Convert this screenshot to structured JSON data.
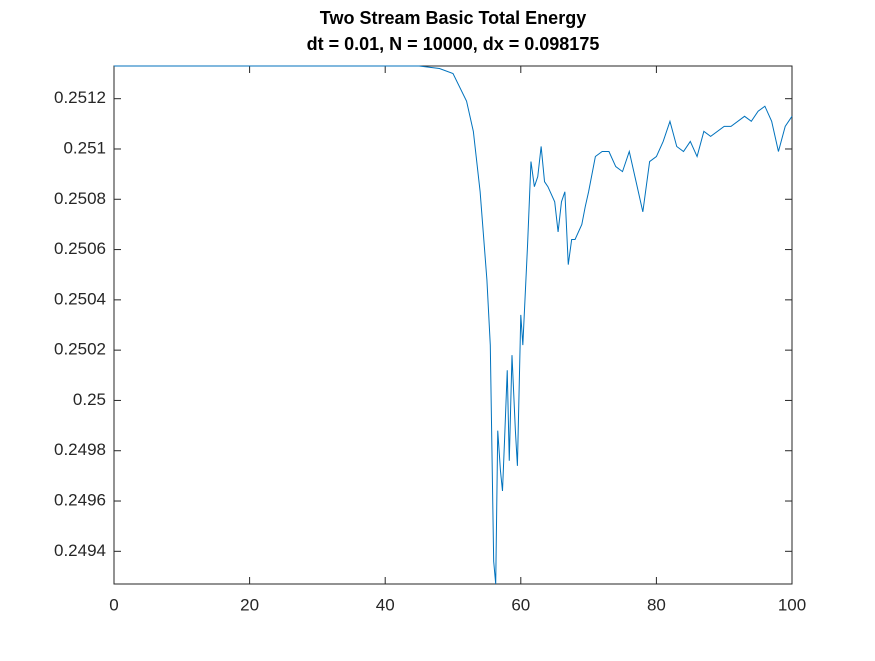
{
  "chart_data": {
    "type": "line",
    "title": "Two Stream Basic Total Energy",
    "subtitle": "dt = 0.01, N = 10000, dx = 0.098175",
    "xlim": [
      0,
      100
    ],
    "xticks": [
      0,
      20,
      40,
      60,
      80,
      100
    ],
    "ylim": [
      0.24927,
      0.25133
    ],
    "yticks": [
      0.2494,
      0.2496,
      0.2498,
      0.25,
      0.2502,
      0.2504,
      0.2506,
      0.2508,
      0.251,
      0.2512
    ],
    "series": [
      {
        "color": "#0072bd",
        "x": [
          0,
          10,
          20,
          30,
          40,
          45,
          48,
          50,
          52,
          53,
          54,
          55,
          55.5,
          56,
          56.3,
          56.6,
          57,
          57.3,
          57.6,
          58,
          58.3,
          58.7,
          59.2,
          59.5,
          60,
          60.3,
          61,
          61.5,
          62,
          62.5,
          63,
          63.5,
          64,
          65,
          65.5,
          66,
          66.5,
          67,
          67.5,
          68,
          69,
          69.5,
          70,
          71,
          72,
          73,
          74,
          75,
          76,
          77,
          78,
          79,
          80,
          81,
          82,
          83,
          84,
          85,
          86,
          87,
          88,
          90,
          91,
          93,
          94,
          95,
          96,
          97,
          98,
          99,
          100
        ],
        "values": [
          0.25133,
          0.25133,
          0.25133,
          0.25133,
          0.25133,
          0.25133,
          0.25132,
          0.2513,
          0.25119,
          0.25107,
          0.25083,
          0.25048,
          0.25022,
          0.24936,
          0.24927,
          0.24988,
          0.24972,
          0.24964,
          0.24984,
          0.25012,
          0.24976,
          0.25018,
          0.24988,
          0.24974,
          0.25034,
          0.25022,
          0.25062,
          0.25095,
          0.25085,
          0.25089,
          0.25101,
          0.25087,
          0.25085,
          0.25079,
          0.25067,
          0.25079,
          0.25083,
          0.25054,
          0.25064,
          0.25064,
          0.2507,
          0.25077,
          0.25083,
          0.25097,
          0.25099,
          0.25099,
          0.25093,
          0.25091,
          0.25099,
          0.25087,
          0.25075,
          0.25095,
          0.25097,
          0.25103,
          0.25111,
          0.25101,
          0.25099,
          0.25103,
          0.25097,
          0.25107,
          0.25105,
          0.25109,
          0.25109,
          0.25113,
          0.25111,
          0.25115,
          0.25117,
          0.25111,
          0.25099,
          0.25109,
          0.25113
        ]
      }
    ],
    "grid": false
  }
}
